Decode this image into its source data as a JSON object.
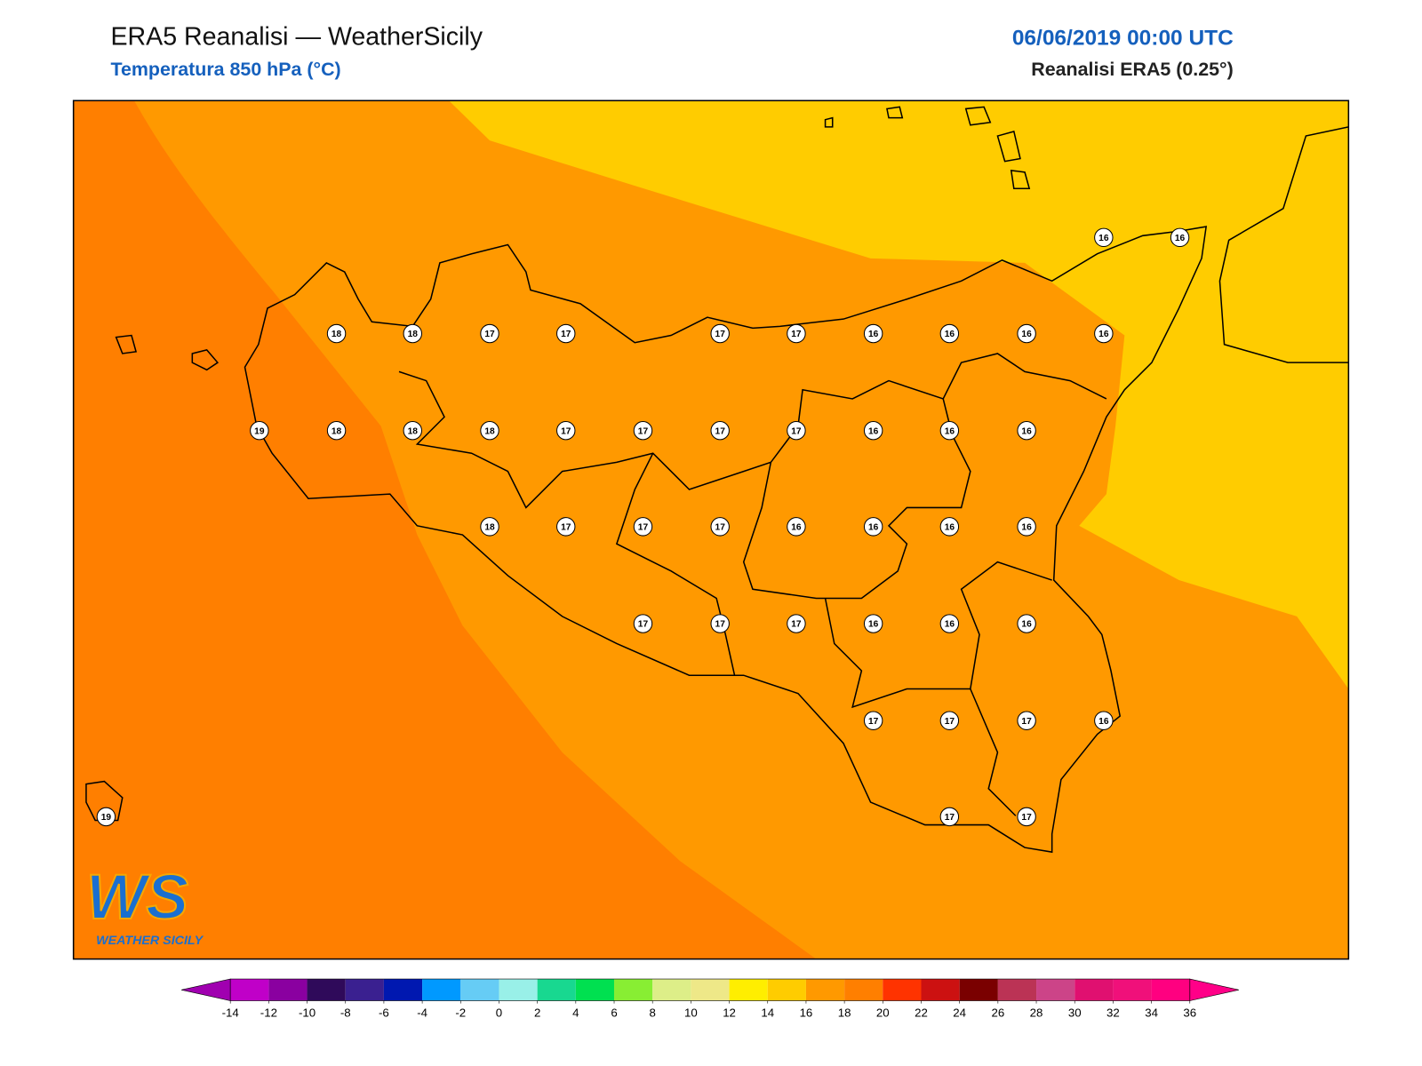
{
  "header": {
    "title": "ERA5 Reanalisi — WeatherSicily",
    "subtitle": "Temperatura 850 hPa (°C)",
    "date": "06/06/2019 00:00 UTC",
    "source": "Reanalisi ERA5 (0.25°)"
  },
  "map": {
    "points": [
      16,
      16,
      18,
      18,
      17,
      17,
      17,
      17,
      16,
      16,
      16,
      16,
      19,
      18,
      18,
      18,
      17,
      17,
      17,
      17,
      16,
      16,
      16,
      18,
      17,
      17,
      17,
      16,
      16,
      16,
      16,
      17,
      17,
      17,
      16,
      16,
      16,
      17,
      17,
      17,
      16,
      19,
      17,
      17
    ]
  },
  "logo": {
    "mark": "WS",
    "text": "WEATHER SICILY"
  },
  "colorbar": {
    "ticks": [
      -14,
      -12,
      -10,
      -8,
      -6,
      -4,
      -2,
      0,
      2,
      4,
      6,
      8,
      10,
      12,
      14,
      16,
      18,
      20,
      22,
      24,
      26,
      28,
      30,
      32,
      34,
      36
    ],
    "colors": [
      "#c000c8",
      "#8a00a0",
      "#2f0a5a",
      "#3a2090",
      "#0018b0",
      "#0099ff",
      "#66ccf5",
      "#99f0e8",
      "#18d890",
      "#00e050",
      "#88ee33",
      "#ddee88",
      "#eee888",
      "#ffee00",
      "#ffcc00",
      "#ff9900",
      "#ff7f00",
      "#ff3300",
      "#cc1111",
      "#7a0000",
      "#bb3355",
      "#cc4488",
      "#e01070",
      "#f0107a",
      "#ff0080"
    ],
    "under_color": "#a000b0",
    "over_color": "#ff0088"
  }
}
